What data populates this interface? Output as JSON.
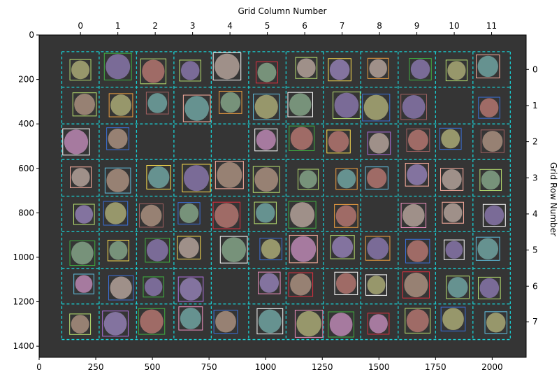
{
  "chart_data": {
    "type": "scatter",
    "title": "",
    "xlabel": "",
    "ylabel": "",
    "top_xlabel": "Grid Column Number",
    "right_ylabel": "Grid Row Number",
    "xlim": [
      0,
      2150
    ],
    "ylim": [
      1450,
      0
    ],
    "x_ticks": [
      0,
      250,
      500,
      750,
      1000,
      1250,
      1500,
      1750,
      2000
    ],
    "y_ticks": [
      0,
      200,
      400,
      600,
      800,
      1000,
      1200,
      1400
    ],
    "col_ticks": [
      "0",
      "1",
      "2",
      "3",
      "4",
      "5",
      "6",
      "7",
      "8",
      "9",
      "10",
      "11"
    ],
    "row_ticks": [
      "0",
      "1",
      "2",
      "3",
      "4",
      "5",
      "6",
      "7"
    ],
    "grid_col_edges": [
      100,
      265,
      430,
      595,
      760,
      925,
      1090,
      1255,
      1420,
      1585,
      1750,
      1915,
      2080
    ],
    "grid_row_edges": [
      75,
      235,
      400,
      560,
      725,
      885,
      1050,
      1210,
      1370
    ],
    "background_color": "#353535",
    "grid_line_color": "#19cfd3",
    "colony_fill_colors": [
      "#a8706a",
      "#8a78a8",
      "#a0a070",
      "#7d9a80",
      "#a08878",
      "#8070a0",
      "#6a9a98",
      "#b080a8",
      "#a89890"
    ],
    "box_edge_colors": [
      "#3a6fd8",
      "#ffffff",
      "#f0a040",
      "#f090c0",
      "#40b040",
      "#b8e070",
      "#e03040",
      "#ffb0a0",
      "#b070e0",
      "#ffe050",
      "#a06060",
      "#60c0e0"
    ],
    "empty_cells": [
      [
        1,
        10
      ],
      [
        2,
        2
      ],
      [
        2,
        3
      ],
      [
        4,
        8
      ],
      [
        6,
        4
      ],
      [
        2,
        4
      ]
    ]
  }
}
